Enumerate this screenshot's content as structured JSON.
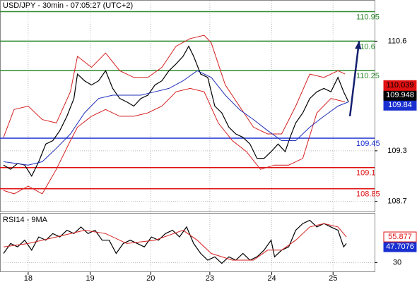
{
  "chart_data": [
    {
      "type": "line",
      "title": "USD/JPY - 30min - 07:05:27 (UTC+2)",
      "xlim": [
        0,
        105
      ],
      "xticks": [
        {
          "value": 7,
          "label": "18"
        },
        {
          "value": 24.6,
          "label": "19"
        },
        {
          "value": 41.8,
          "label": "20"
        },
        {
          "value": 58.6,
          "label": "23"
        },
        {
          "value": 76.2,
          "label": "24"
        },
        {
          "value": 93.6,
          "label": "25"
        }
      ],
      "ylim": [
        108.58,
        111.08
      ],
      "yticks": [
        108.7,
        109.3,
        110.6
      ],
      "grid": true,
      "series": [
        {
          "color": "#000000",
          "x": [
            0,
            2,
            4,
            6,
            8,
            10,
            12,
            14,
            16,
            18,
            20,
            21,
            23,
            25,
            27,
            29,
            31,
            33,
            35,
            37,
            39,
            41,
            43,
            45,
            47,
            49,
            51,
            52.6,
            54,
            56,
            58,
            60,
            62,
            64,
            66,
            68,
            70,
            72,
            74,
            76,
            78,
            80,
            81.4,
            83,
            85,
            87,
            89,
            91,
            93,
            95,
            96.6,
            98
          ],
          "values": [
            109.13,
            109.08,
            109.15,
            109.13,
            109.0,
            109.17,
            109.38,
            109.42,
            109.54,
            109.71,
            109.92,
            110.21,
            110.13,
            110.08,
            110.13,
            110.25,
            110.04,
            109.92,
            109.88,
            109.83,
            109.92,
            109.96,
            110.08,
            110.13,
            110.25,
            110.33,
            110.42,
            110.54,
            110.42,
            110.21,
            110.17,
            109.83,
            109.75,
            109.58,
            109.5,
            109.46,
            109.38,
            109.21,
            109.21,
            109.29,
            109.38,
            109.29,
            109.46,
            109.63,
            109.75,
            109.92,
            110.0,
            110.04,
            110.0,
            110.17,
            110.0,
            109.88
          ]
        },
        {
          "color": "#d42020",
          "x": [
            0,
            3,
            7,
            11,
            15,
            19,
            21,
            25,
            29,
            33,
            37,
            41,
            45,
            49,
            53,
            57,
            59,
            63,
            67,
            71,
            75,
            79,
            83,
            87,
            91,
            95,
            97
          ],
          "values": [
            109.46,
            109.79,
            109.83,
            109.67,
            109.63,
            110.0,
            110.42,
            110.29,
            110.46,
            110.25,
            110.17,
            110.17,
            110.29,
            110.54,
            110.63,
            110.67,
            110.58,
            110.08,
            109.83,
            109.58,
            109.5,
            109.5,
            109.83,
            110.21,
            110.17,
            110.25,
            110.21
          ]
        },
        {
          "color": "#d42020",
          "x": [
            0,
            3,
            7,
            11,
            15,
            19,
            21,
            25,
            29,
            33,
            37,
            41,
            45,
            49,
            53,
            57,
            61,
            65,
            69,
            73,
            77,
            81,
            85,
            89,
            93,
            97
          ],
          "values": [
            108.83,
            108.79,
            108.88,
            108.79,
            109.08,
            109.42,
            109.58,
            109.71,
            109.79,
            109.71,
            109.71,
            109.75,
            109.83,
            110.0,
            110.04,
            110.0,
            109.63,
            109.42,
            109.29,
            109.08,
            109.13,
            109.13,
            109.21,
            109.75,
            109.92,
            109.88
          ]
        },
        {
          "color": "#1f2fb8",
          "x": [
            0,
            7,
            11,
            15,
            19,
            23,
            27,
            31,
            35,
            39,
            43,
            47,
            51,
            55,
            59,
            63,
            67,
            71,
            75,
            79,
            83,
            87,
            91,
            95,
            98
          ],
          "values": [
            109.17,
            109.13,
            109.17,
            109.33,
            109.5,
            109.75,
            109.92,
            109.96,
            109.96,
            109.96,
            110.0,
            110.04,
            110.13,
            110.25,
            110.17,
            109.96,
            109.79,
            109.67,
            109.54,
            109.42,
            109.42,
            109.58,
            109.71,
            109.83,
            109.88
          ]
        }
      ],
      "forecast": {
        "color": "#14206e",
        "x": [
          98.4,
          101
        ],
        "values": [
          109.71,
          110.6
        ]
      },
      "levels": [
        {
          "value": 110.95,
          "color": "#2e8b2e"
        },
        {
          "value": 110.6,
          "color": "#2e8b2e"
        },
        {
          "value": 110.25,
          "color": "#2e8b2e"
        },
        {
          "value": 109.45,
          "color": "#1a2fd0"
        },
        {
          "value": 109.1,
          "color": "#e01010"
        },
        {
          "value": 108.85,
          "color": "#e01010"
        }
      ],
      "price_tags": [
        {
          "value": 110.039,
          "color": "#e01010",
          "text_color": "#000000"
        },
        {
          "value": 109.948,
          "color": "#000000",
          "text_color": "#ffffff"
        },
        {
          "value": 109.84,
          "color": "#1a2fd0",
          "text_color": "#ffffff"
        }
      ]
    },
    {
      "type": "line",
      "title": "RSI14 - 9MA",
      "ylim": [
        20,
        85
      ],
      "yticks": [
        30
      ],
      "grid": true,
      "series": [
        {
          "color": "#000000",
          "x": [
            0,
            2,
            4,
            6,
            8,
            10,
            12,
            14,
            16,
            18,
            20,
            22,
            24,
            26,
            28,
            30,
            32,
            34,
            36,
            38,
            40,
            42,
            44,
            46,
            48,
            50,
            52,
            54,
            56,
            58,
            60,
            62,
            64,
            66,
            68,
            70,
            72,
            74,
            76,
            77,
            79,
            81,
            83,
            85,
            87,
            89,
            91,
            93,
            95,
            96.6,
            97.4
          ],
          "values": [
            40.2,
            51.4,
            47.6,
            55.1,
            43.9,
            58.8,
            55.1,
            62.6,
            58.8,
            66.3,
            62.6,
            70.0,
            62.6,
            66.3,
            55.1,
            55.1,
            40.2,
            51.4,
            55.1,
            51.4,
            47.6,
            58.8,
            55.1,
            62.6,
            66.3,
            58.8,
            70.0,
            51.4,
            40.2,
            32.7,
            36.4,
            29.0,
            36.4,
            32.7,
            40.2,
            32.7,
            36.4,
            43.9,
            55.1,
            36.4,
            43.9,
            47.6,
            66.3,
            73.8,
            77.5,
            70.0,
            73.8,
            70.0,
            66.3,
            47.6,
            51.4
          ]
        },
        {
          "color": "#d42020",
          "x": [
            0,
            7,
            15,
            23,
            29,
            35,
            43,
            51,
            55,
            59,
            65,
            71,
            75,
            79,
            83,
            87,
            91,
            95,
            97.4
          ],
          "values": [
            47.6,
            51.4,
            58.8,
            66.3,
            62.6,
            51.4,
            55.1,
            66.3,
            55.1,
            40.2,
            32.7,
            32.7,
            43.9,
            43.9,
            55.1,
            70.0,
            73.8,
            70.0,
            58.8
          ]
        }
      ],
      "price_tags": [
        {
          "value": 55.877,
          "color": "#ffffff",
          "text_color": "#e01010",
          "border": "#e01010"
        },
        {
          "value": 47.7076,
          "color": "#1a2fd0",
          "text_color": "#ffffff"
        }
      ]
    }
  ]
}
